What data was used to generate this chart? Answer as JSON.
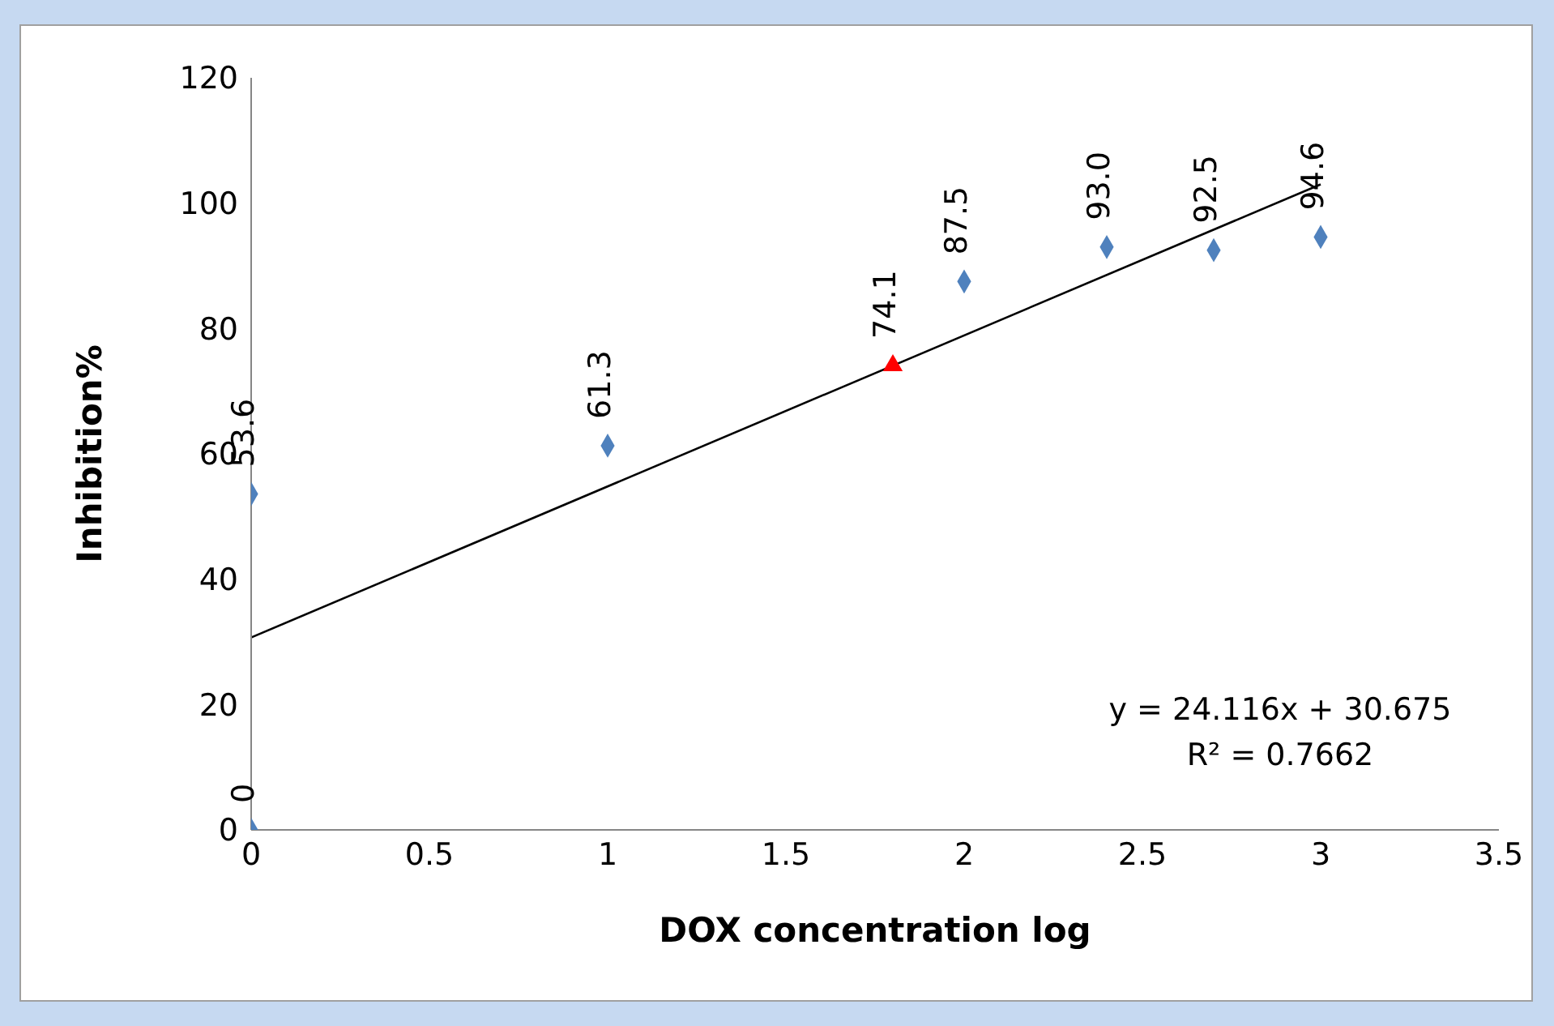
{
  "chart_data": {
    "type": "scatter",
    "xlabel": "DOX concentration log",
    "ylabel": "Inhibition%",
    "xlim": [
      0,
      3.5
    ],
    "xticks": [
      0,
      0.5,
      1,
      1.5,
      2,
      2.5,
      3,
      3.5
    ],
    "ylim": [
      0,
      120
    ],
    "yticks": [
      0,
      20,
      40,
      60,
      80,
      100,
      120
    ],
    "series": [
      {
        "marker": "diamond",
        "color": "#4f81bd",
        "x": [
          0,
          0,
          1,
          2,
          2.4,
          2.7,
          3
        ],
        "values": [
          0,
          53.6,
          61.3,
          87.5,
          93.0,
          92.5,
          94.6
        ],
        "value_labels": [
          "0",
          "53.6",
          "61.3",
          "87.5",
          "93.0",
          "92.5",
          "94.6"
        ]
      },
      {
        "marker": "triangle",
        "color": "#ff0000",
        "x": [
          1.8
        ],
        "values": [
          74.1
        ],
        "value_labels": [
          "74.1"
        ]
      },
      {
        "type": "line",
        "marker": "none",
        "color": "#000000",
        "x": [
          0,
          3
        ],
        "values": [
          30.7,
          103
        ]
      }
    ],
    "annotations": [
      "y = 24.116x + 30.675",
      "R² = 0.7662"
    ]
  }
}
